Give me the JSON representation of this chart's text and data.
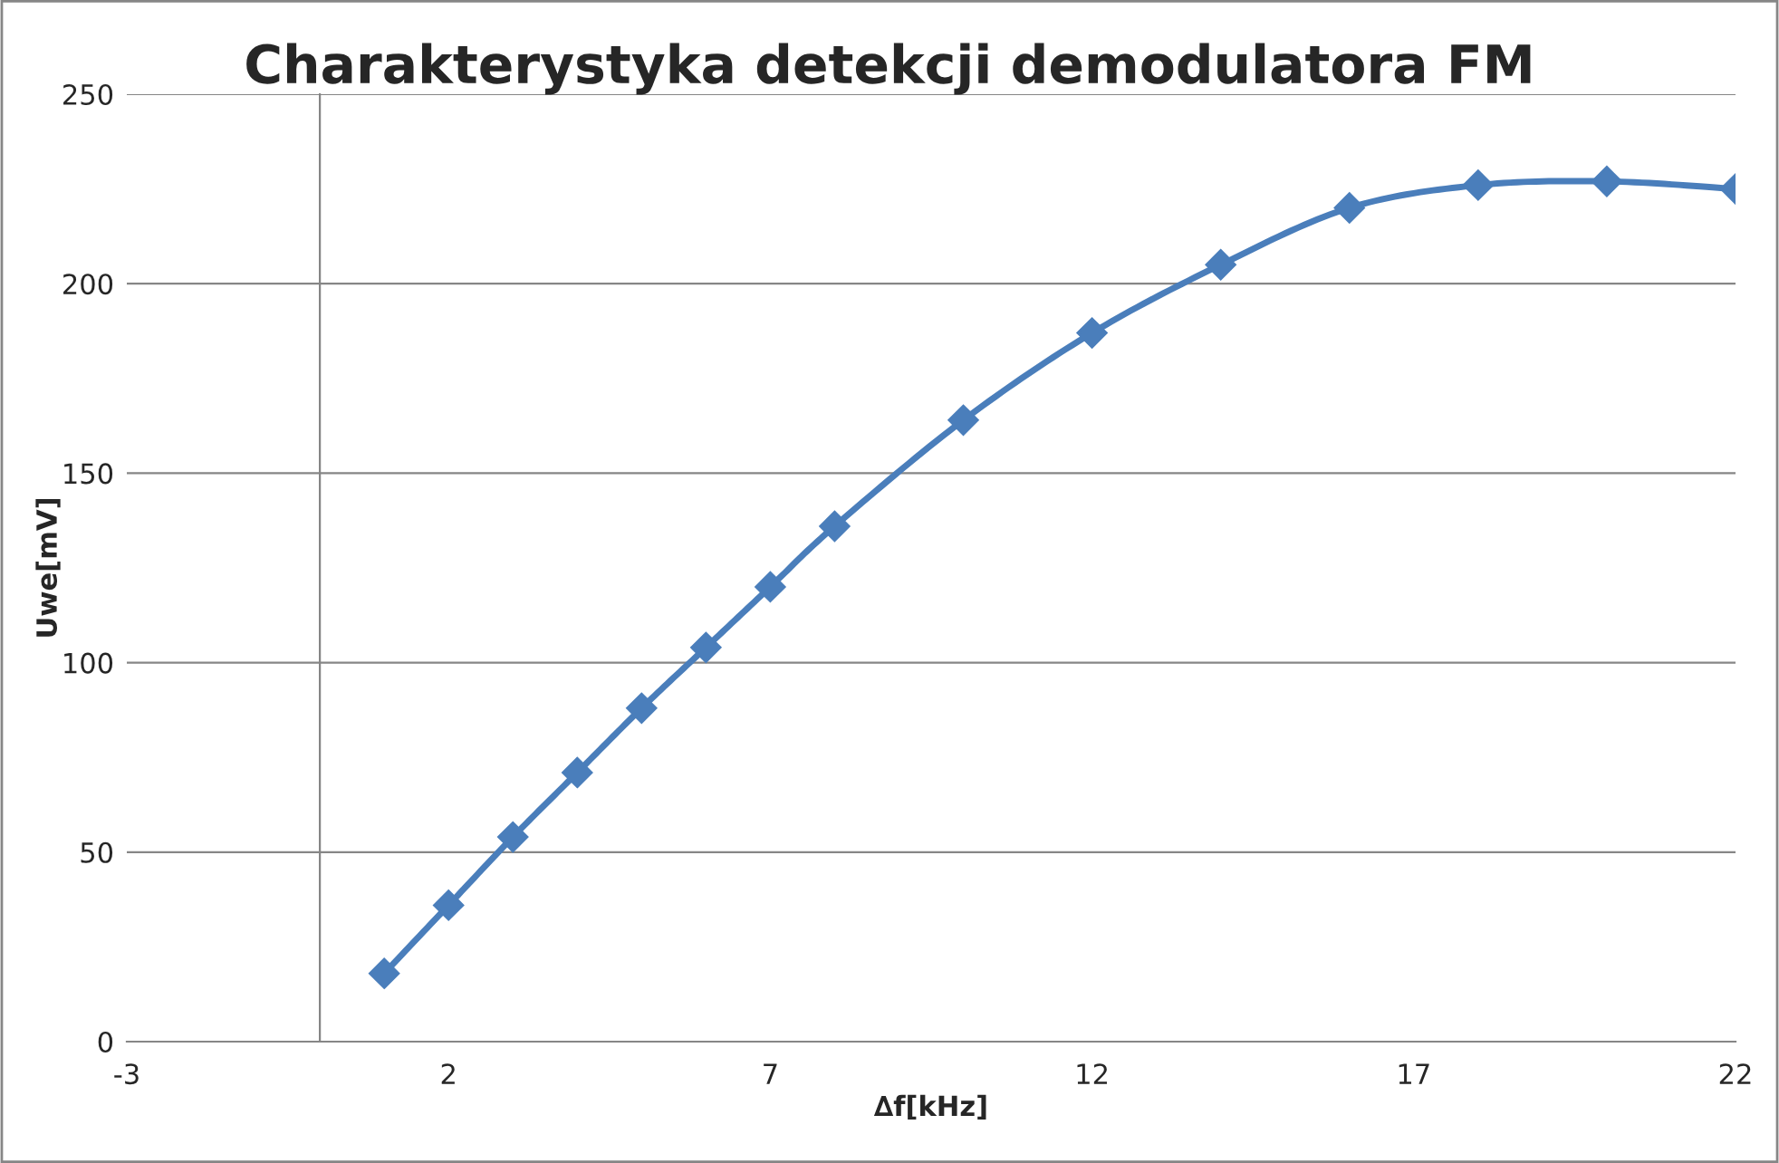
{
  "chart_data": {
    "type": "line",
    "title": "Charakterystyka detekcji demodulatora FM",
    "xlabel": "∆f[kHz]",
    "ylabel": "Uwe[mV]",
    "series": [
      {
        "color": "#4a7ebb",
        "x": [
          1,
          2,
          3,
          4,
          5,
          6,
          7,
          8,
          10,
          12,
          14,
          16,
          18,
          20,
          22
        ],
        "values": [
          18,
          36,
          54,
          71,
          88,
          104,
          120,
          136,
          164,
          187,
          205,
          220,
          226,
          227,
          225
        ]
      }
    ],
    "xlim": [
      -3,
      22
    ],
    "xticks": [
      -3,
      2,
      7,
      12,
      17,
      22
    ],
    "ylim": [
      0,
      250
    ],
    "yticks": [
      0,
      50,
      100,
      150,
      200,
      250
    ],
    "grid": "y",
    "marker": "diamond",
    "line_style": "solid"
  }
}
